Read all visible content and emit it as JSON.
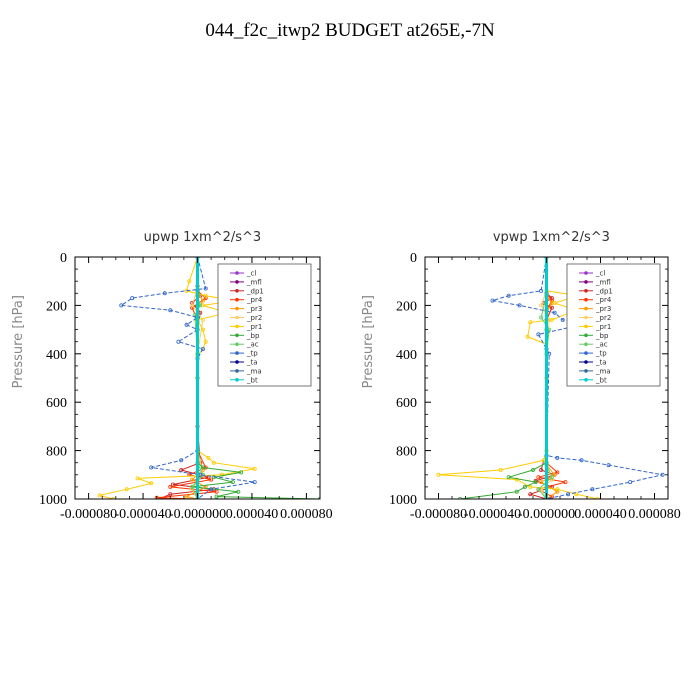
{
  "page": {
    "title": "044_f2c_itwp2  BUDGET at265E,-7N"
  },
  "chart_data": [
    {
      "type": "line",
      "title": "upwp   1xm^2/s^3",
      "ylabel": "Pressure [hPa]",
      "xlabel": "",
      "xlim": [
        -9e-05,
        9e-05
      ],
      "ylim": [
        1000,
        0
      ],
      "xticks": [
        "-0.000080",
        "-0.000040",
        "-0.000000",
        "0.000040",
        "0.000080"
      ],
      "xtick_values": [
        -8e-05,
        -4e-05,
        0,
        4e-05,
        8e-05
      ],
      "yticks": [
        "0",
        "200",
        "400",
        "600",
        "800",
        "1000"
      ],
      "ytick_values": [
        0,
        200,
        400,
        600,
        800,
        1000
      ],
      "legend_position": "top-right",
      "series": [
        {
          "name": "_cl",
          "color": "#9933cc",
          "x": [
            0,
            0,
            0,
            0,
            0,
            0,
            0,
            0,
            0,
            0,
            0
          ],
          "y": [
            0,
            100,
            200,
            300,
            400,
            500,
            600,
            700,
            800,
            900,
            1000
          ]
        },
        {
          "name": "_mfl",
          "color": "#800080",
          "x": [
            0,
            0,
            0,
            0,
            0,
            0,
            0,
            0,
            0,
            0,
            0
          ],
          "y": [
            0,
            100,
            200,
            300,
            400,
            500,
            600,
            700,
            800,
            900,
            1000
          ]
        },
        {
          "name": "_dp1",
          "color": "#cc2222",
          "x": [
            0,
            0,
            2e-06,
            -4e-06,
            2e-06,
            0,
            0,
            0,
            2e-06,
            -1.2e-05,
            8e-06,
            -1.8e-05,
            1.2e-05,
            -2e-05,
            -2.8e-05,
            0
          ],
          "y": [
            0,
            120,
            160,
            190,
            230,
            300,
            500,
            700,
            850,
            880,
            910,
            940,
            960,
            980,
            1000,
            1000
          ]
        },
        {
          "name": "_pr4",
          "color": "#ff3300",
          "x": [
            0,
            0,
            6e-06,
            -4e-06,
            0,
            0,
            0,
            6e-06,
            -6e-06,
            1e-05,
            -2e-05,
            1.4e-05,
            -3e-05,
            0
          ],
          "y": [
            0,
            140,
            170,
            210,
            260,
            400,
            800,
            870,
            900,
            920,
            950,
            970,
            995,
            1000
          ]
        },
        {
          "name": "_pr3",
          "color": "#ff9900",
          "x": [
            0,
            0,
            4e-06,
            0,
            0,
            0,
            0,
            4e-06,
            -4e-06,
            6e-06,
            -8e-06,
            0
          ],
          "y": [
            0,
            150,
            180,
            220,
            300,
            500,
            800,
            880,
            920,
            950,
            990,
            1000
          ]
        },
        {
          "name": "_pr2",
          "color": "#ffcc66",
          "x": [
            0,
            0,
            -4e-06,
            4e-06,
            0,
            0,
            4e-06,
            -4e-06,
            0
          ],
          "y": [
            0,
            130,
            200,
            260,
            400,
            800,
            900,
            960,
            1000
          ]
        },
        {
          "name": "_pr1",
          "color": "#ffcc00",
          "x": [
            0,
            -6e-06,
            -8e-06,
            6e-06,
            2.8e-05,
            4e-06,
            2.2e-05,
            0,
            4e-06,
            6e-06,
            4e-06,
            0,
            0,
            8e-06,
            1.2e-05,
            4.2e-05,
            1.8e-05,
            -4.4e-05,
            -3.4e-05,
            -5.2e-05,
            -7.2e-05,
            -6.2e-05,
            0
          ],
          "y": [
            0,
            100,
            140,
            160,
            180,
            200,
            230,
            260,
            300,
            350,
            380,
            410,
            800,
            830,
            850,
            875,
            900,
            915,
            935,
            960,
            985,
            1000,
            1000
          ]
        },
        {
          "name": "_bp",
          "color": "#33aa33",
          "x": [
            0,
            0,
            0,
            0,
            4e-06,
            3.2e-05,
            1.2e-05,
            2.6e-05,
            -4e-06,
            3e-05,
            1.4e-05,
            9e-05
          ],
          "y": [
            0,
            200,
            500,
            850,
            870,
            890,
            910,
            930,
            950,
            970,
            990,
            1000
          ]
        },
        {
          "name": "_ac",
          "color": "#66cc66",
          "x": [
            0,
            0,
            2e-06,
            -2e-06,
            0,
            0,
            4e-06,
            -4e-06,
            0
          ],
          "y": [
            0,
            160,
            200,
            240,
            400,
            850,
            900,
            950,
            1000
          ]
        },
        {
          "name": "_tp",
          "color": "#3366cc",
          "x": [
            0,
            6e-06,
            -2.4e-05,
            -4.8e-05,
            -5.6e-05,
            -2e-05,
            0,
            -8e-06,
            0,
            -1.4e-05,
            4e-06,
            0,
            0,
            -1.2e-05,
            -3.4e-05,
            2e-06,
            4.2e-05,
            1e-05,
            0
          ],
          "y": [
            0,
            130,
            150,
            170,
            200,
            220,
            250,
            280,
            300,
            350,
            380,
            420,
            800,
            840,
            870,
            900,
            930,
            960,
            1000
          ]
        },
        {
          "name": "_ta",
          "color": "#000088",
          "x": [
            0,
            0,
            0,
            0,
            0,
            0
          ],
          "y": [
            0,
            200,
            400,
            600,
            800,
            1000
          ]
        },
        {
          "name": "_ma",
          "color": "#336699",
          "x": [
            0,
            0,
            0,
            0,
            0,
            0
          ],
          "y": [
            0,
            200,
            400,
            600,
            800,
            1000
          ]
        },
        {
          "name": "_bt",
          "color": "#00cccc",
          "x": [
            0,
            0,
            0,
            0,
            0,
            0
          ],
          "y": [
            0,
            200,
            400,
            600,
            800,
            1000
          ]
        }
      ]
    },
    {
      "type": "line",
      "title": "vpwp   1xm^2/s^3",
      "ylabel": "Pressure [hPa]",
      "xlabel": "",
      "xlim": [
        -9e-05,
        9e-05
      ],
      "ylim": [
        1000,
        0
      ],
      "xticks": [
        "-0.000080",
        "-0.000040",
        "-0.000000",
        "0.000040",
        "0.000080"
      ],
      "xtick_values": [
        -8e-05,
        -4e-05,
        0,
        4e-05,
        8e-05
      ],
      "yticks": [
        "0",
        "200",
        "400",
        "600",
        "800",
        "1000"
      ],
      "ytick_values": [
        0,
        200,
        400,
        600,
        800,
        1000
      ],
      "legend_position": "top-right",
      "series": [
        {
          "name": "_cl",
          "color": "#9933cc",
          "x": [
            0,
            0,
            0,
            0,
            0,
            0,
            0,
            0,
            0,
            0,
            0
          ],
          "y": [
            0,
            100,
            200,
            300,
            400,
            500,
            600,
            700,
            800,
            900,
            1000
          ]
        },
        {
          "name": "_mfl",
          "color": "#800080",
          "x": [
            0,
            0,
            0,
            0,
            0,
            0,
            0,
            0,
            0,
            0,
            0
          ],
          "y": [
            0,
            100,
            200,
            300,
            400,
            500,
            600,
            700,
            800,
            900,
            1000
          ]
        },
        {
          "name": "_dp1",
          "color": "#cc2222",
          "x": [
            0,
            0,
            4e-06,
            -2e-06,
            4e-06,
            0,
            0,
            0,
            -4e-06,
            6e-06,
            -8e-06,
            4e-06,
            -1.2e-05,
            0
          ],
          "y": [
            0,
            150,
            170,
            190,
            210,
            260,
            500,
            800,
            880,
            900,
            925,
            950,
            980,
            1000
          ]
        },
        {
          "name": "_pr4",
          "color": "#ff3300",
          "x": [
            0,
            0,
            4e-06,
            0,
            0,
            0,
            8e-06,
            -6e-06,
            1.4e-05,
            -6e-06,
            4e-06,
            0
          ],
          "y": [
            0,
            150,
            180,
            220,
            400,
            850,
            890,
            910,
            930,
            960,
            990,
            1000
          ]
        },
        {
          "name": "_pr3",
          "color": "#ff9900",
          "x": [
            0,
            0,
            4e-06,
            0,
            0,
            0,
            6e-06,
            -4e-06,
            8e-06,
            0
          ],
          "y": [
            0,
            160,
            190,
            230,
            500,
            860,
            900,
            930,
            970,
            1000
          ]
        },
        {
          "name": "_pr2",
          "color": "#ffcc66",
          "x": [
            0,
            0,
            -4e-06,
            2e-06,
            0,
            0,
            4e-06,
            -4e-06,
            0
          ],
          "y": [
            0,
            140,
            200,
            260,
            400,
            860,
            920,
            960,
            1000
          ]
        },
        {
          "name": "_pr1",
          "color": "#ffcc00",
          "x": [
            0,
            0,
            2.4e-05,
            6e-06,
            2.2e-05,
            4e-06,
            -1.2e-05,
            -1.4e-05,
            0,
            0,
            0,
            -2e-06,
            -3.4e-05,
            -8e-05,
            -2.2e-05,
            -1.2e-05,
            8e-06,
            2.2e-05,
            3.8e-05,
            0
          ],
          "y": [
            0,
            140,
            160,
            190,
            220,
            260,
            270,
            330,
            360,
            400,
            800,
            840,
            880,
            900,
            920,
            950,
            960,
            980,
            1000,
            1000
          ]
        },
        {
          "name": "_bp",
          "color": "#33aa33",
          "x": [
            0,
            0,
            0,
            -1e-05,
            -2.8e-05,
            -8e-06,
            -1.6e-05,
            -2.2e-05,
            -6.4e-05,
            0
          ],
          "y": [
            0,
            300,
            850,
            880,
            910,
            930,
            950,
            970,
            1000,
            1000
          ]
        },
        {
          "name": "_ac",
          "color": "#66cc66",
          "x": [
            0,
            0,
            -4e-06,
            2e-06,
            0,
            0,
            4e-06,
            -6e-06,
            0
          ],
          "y": [
            0,
            160,
            250,
            300,
            400,
            860,
            910,
            960,
            1000
          ]
        },
        {
          "name": "_tp",
          "color": "#3366cc",
          "x": [
            0,
            -4e-06,
            -2.8e-05,
            -4e-05,
            -2e-05,
            6e-06,
            1.2e-05,
            2.6e-05,
            -6e-06,
            0,
            2e-06,
            0,
            8e-06,
            2.6e-05,
            4.6e-05,
            8.6e-05,
            6.2e-05,
            3.4e-05,
            1.6e-05,
            0
          ],
          "y": [
            0,
            140,
            160,
            180,
            200,
            230,
            260,
            280,
            320,
            380,
            400,
            820,
            830,
            840,
            860,
            900,
            930,
            960,
            980,
            1000
          ]
        },
        {
          "name": "_ta",
          "color": "#000088",
          "x": [
            0,
            0,
            0,
            0,
            0,
            0
          ],
          "y": [
            0,
            200,
            400,
            600,
            800,
            1000
          ]
        },
        {
          "name": "_ma",
          "color": "#336699",
          "x": [
            0,
            0,
            0,
            0,
            0,
            0
          ],
          "y": [
            0,
            200,
            400,
            600,
            800,
            1000
          ]
        },
        {
          "name": "_bt",
          "color": "#00cccc",
          "x": [
            0,
            0,
            0,
            0,
            0,
            0
          ],
          "y": [
            0,
            200,
            400,
            600,
            800,
            1000
          ]
        }
      ]
    }
  ]
}
